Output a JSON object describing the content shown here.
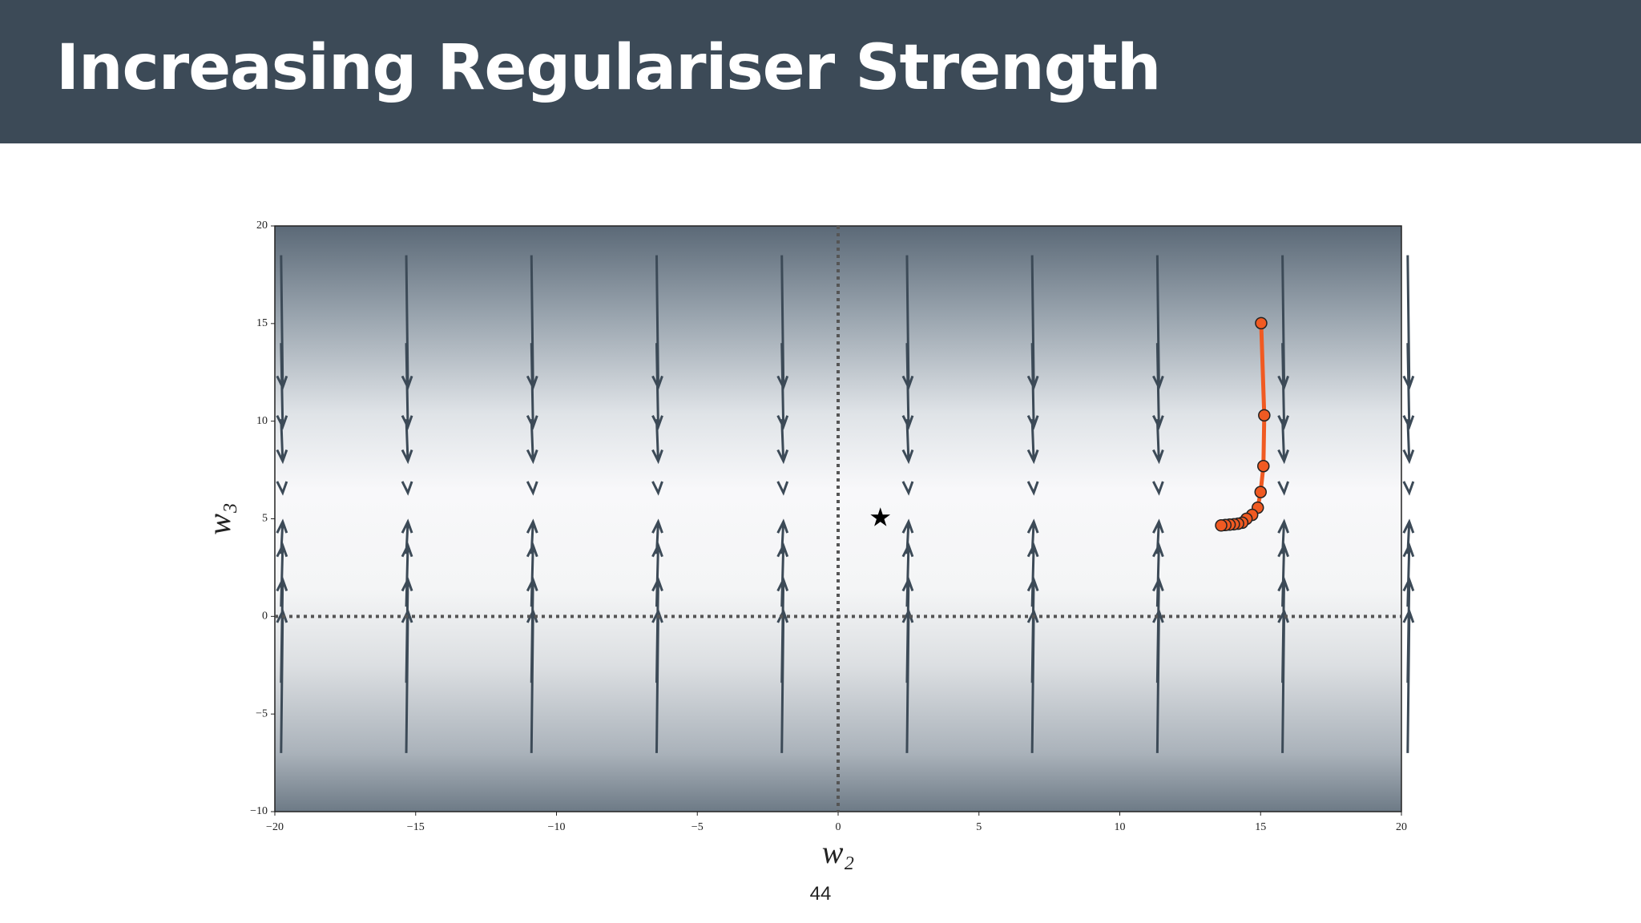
{
  "chart_data": {
    "type": "line",
    "title": "Increasing Regulariser Strength",
    "page_number": "44",
    "x_label": "w₂",
    "y_label": "w₃",
    "x": [
      15.02,
      15.13,
      15.1,
      15.0,
      14.9,
      14.7,
      14.5,
      14.35,
      14.2,
      14.05,
      13.9,
      13.75,
      13.6
    ],
    "values": [
      15.02,
      10.3,
      7.7,
      6.37,
      5.57,
      5.2,
      5.0,
      4.8,
      4.75,
      4.72,
      4.7,
      4.68,
      4.66
    ],
    "color": "#f05a22",
    "optimum": {
      "x": 1.5,
      "y": 5.05
    },
    "xlim": [
      -20,
      20
    ],
    "xticks": [
      {
        "value": -20,
        "label": "−20"
      },
      {
        "value": -15,
        "label": "−15"
      },
      {
        "value": -10,
        "label": "−10"
      },
      {
        "value": -5,
        "label": "−5"
      },
      0,
      5,
      10,
      15,
      20
    ],
    "ylim": [
      -10,
      20
    ],
    "yticks": [
      {
        "value": -10,
        "label": "−10"
      },
      {
        "value": -5,
        "label": "−5"
      },
      0,
      5,
      10,
      15,
      20
    ]
  }
}
